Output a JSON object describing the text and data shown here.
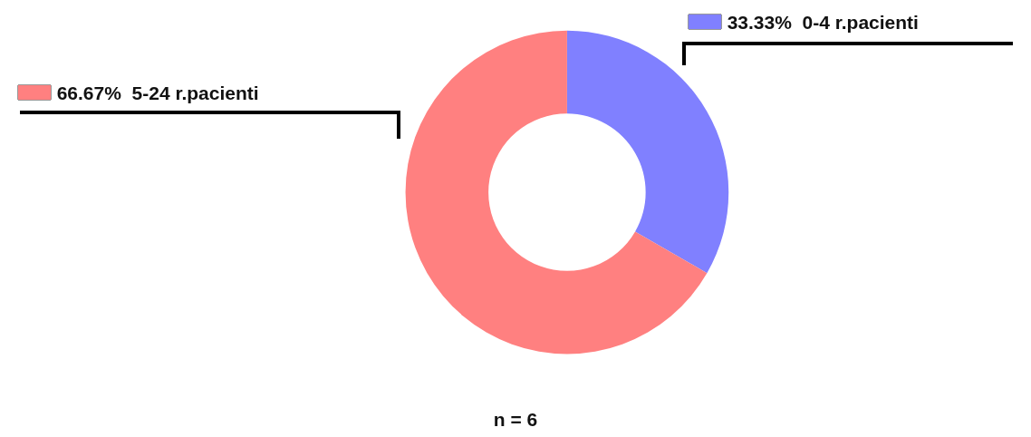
{
  "chart_data": {
    "type": "donut",
    "categories": [
      "0-4 r.pacienti",
      "5-24 r.pacienti"
    ],
    "values": [
      33.33,
      66.67
    ],
    "colors": [
      "#8080ff",
      "#ff8080"
    ],
    "value_labels": [
      "33.33%",
      "66.67%"
    ],
    "annotations": [
      "n = 6"
    ],
    "legend": "top"
  }
}
